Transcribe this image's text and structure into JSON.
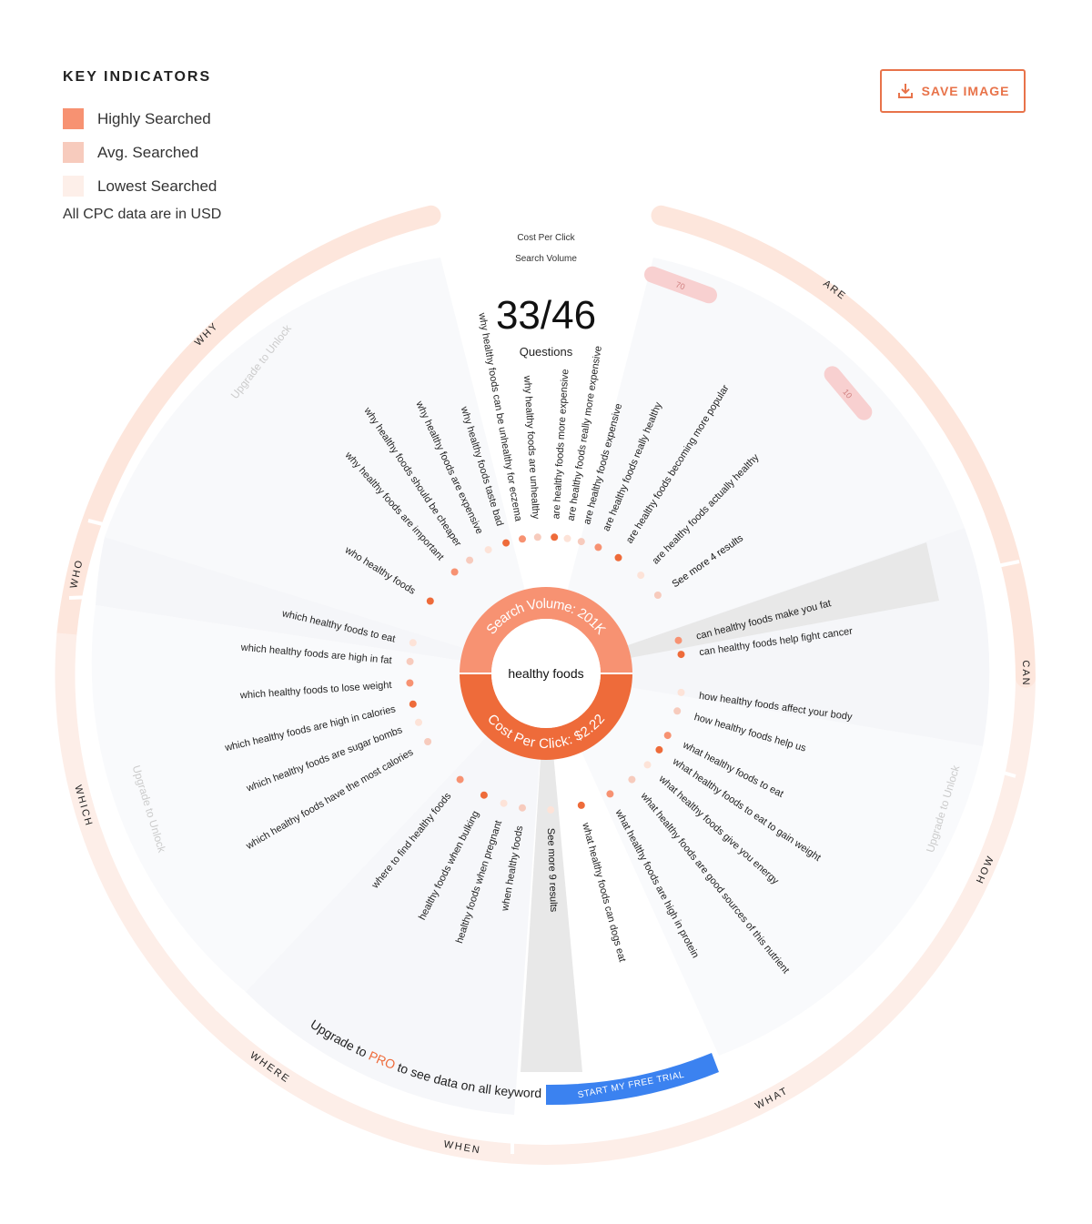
{
  "legend": {
    "title": "KEY INDICATORS",
    "items": [
      {
        "label": "Highly Searched",
        "color": "#f79272"
      },
      {
        "label": "Avg. Searched",
        "color": "#f7cbbd"
      },
      {
        "label": "Lowest Searched",
        "color": "#fdefe9"
      }
    ],
    "note": "All CPC data are in USD"
  },
  "save_button": {
    "label": "SAVE IMAGE",
    "icon": "download-icon"
  },
  "header": {
    "cpc_label": "Cost Per Click",
    "volume_label": "Search Volume",
    "count": "33/46",
    "count_label": "Questions"
  },
  "center": {
    "keyword": "healthy foods",
    "volume_text": "Search Volume: 201K",
    "cpc_text": "Cost Per Click: $2.22"
  },
  "categories": [
    "WHY",
    "ARE",
    "CAN",
    "HOW",
    "WHAT",
    "WHEN",
    "WHERE",
    "WHICH",
    "WHO"
  ],
  "markers": [
    "70",
    "10"
  ],
  "questions_right": [
    "are healthy foods more expensive",
    "are healthy foods really more expensive",
    "are healthy foods expensive",
    "are healthy foods really healthy",
    "are healthy foods becoming more popular",
    "are healthy foods actually healthy",
    "See more 4 results",
    "can healthy foods make you fat",
    "can healthy foods help fight cancer",
    "how healthy foods affect your body",
    "how healthy foods help us",
    "what healthy foods to eat",
    "what healthy foods to eat to gain weight",
    "what healthy foods give you energy",
    "what healthy foods are good sources of this nutrient",
    "what healthy foods are high in protein",
    "what healthy foods can dogs eat",
    "See more 9 results"
  ],
  "questions_left": [
    "why healthy foods are unhealthy",
    "why healthy foods can be unhealthy for eczema",
    "why healthy foods taste bad",
    "why healthy foods are expensive",
    "why healthy foods should be cheaper",
    "why healthy foods are important",
    "who healthy foods",
    "which healthy foods to eat",
    "which healthy foods are high in fat",
    "which healthy foods to lose weight",
    "which healthy foods are high in calories",
    "which healthy foods are sugar bombs",
    "which healthy foods have the most calories",
    "where to find healthy foods",
    "healthy foods when bulking",
    "healthy foods when pregnant",
    "when healthy foods"
  ],
  "upgrade_to_unlock": "Upgrade to Unlock",
  "upgrade_banner": {
    "prefix": "Upgrade to ",
    "pro": "PRO",
    "suffix": " to see data on all keywords"
  },
  "trial_button": "START MY FREE TRIAL"
}
